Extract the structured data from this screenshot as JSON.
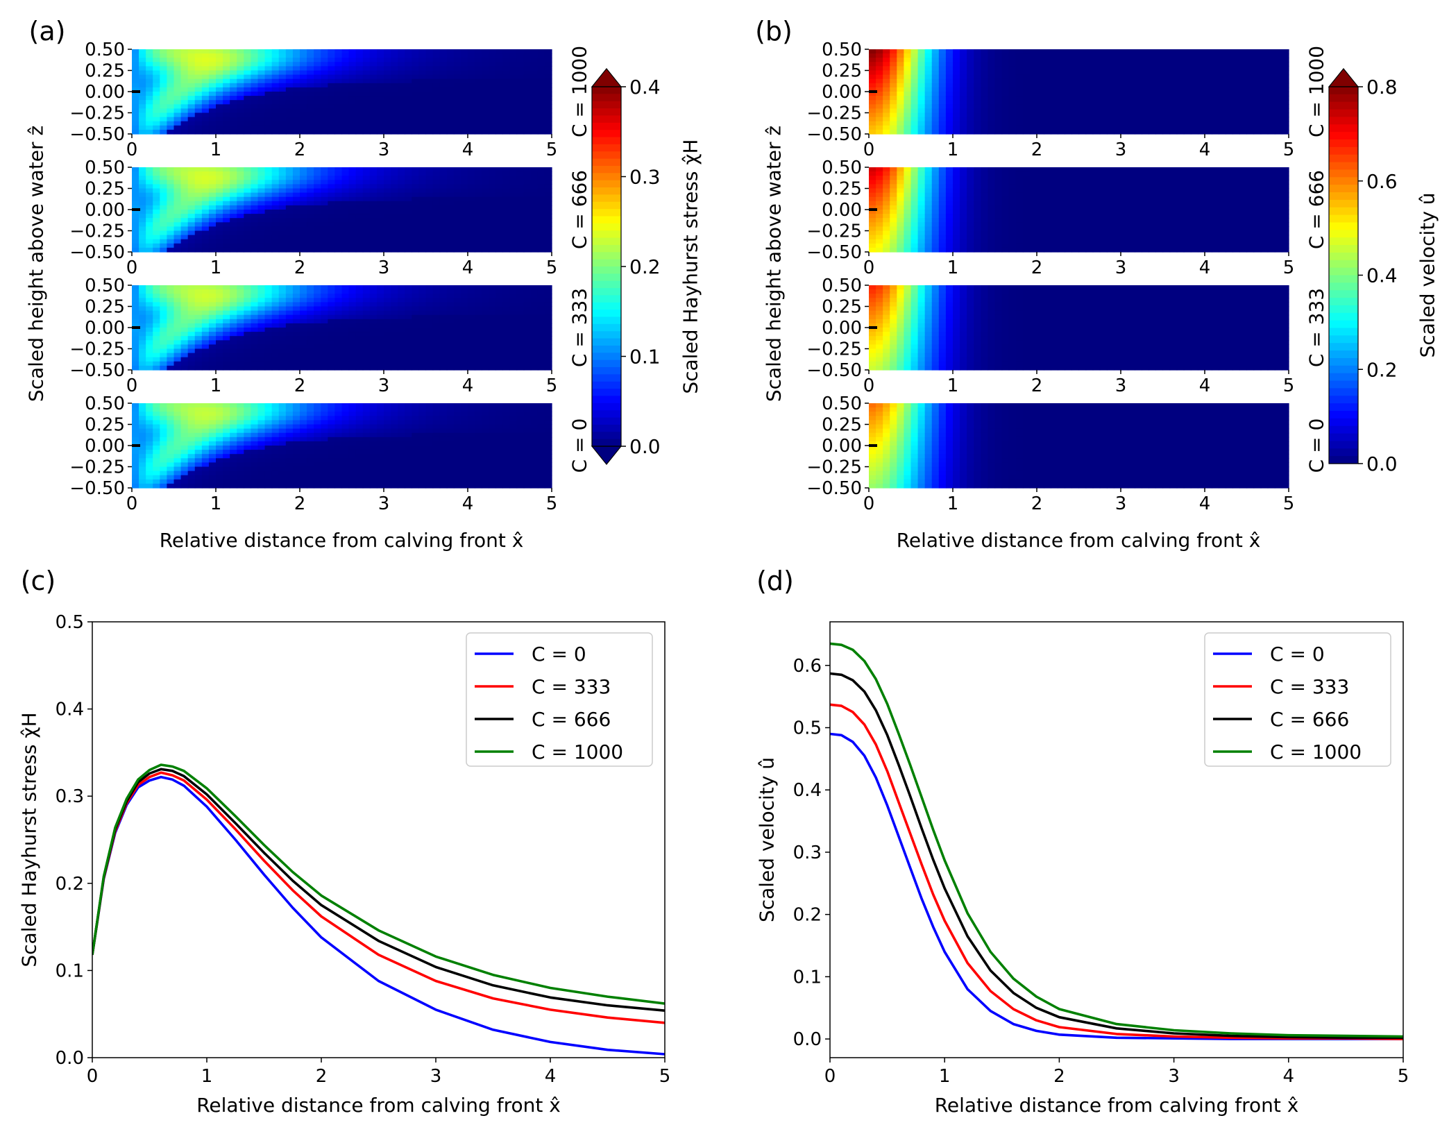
{
  "chart_data": [
    {
      "panel": "(a)",
      "type": "heatmap",
      "quantity": "Scaled Hayhurst stress",
      "xlabel": "Relative distance from calving front x̂",
      "ylabel": "Scaled height above water ẑ",
      "xlim": [
        0,
        5
      ],
      "ylim": [
        -0.5,
        0.5
      ],
      "x_ticks": [
        "0",
        "1",
        "2",
        "3",
        "4",
        "5"
      ],
      "y_ticks": [
        "0.50",
        "0.25",
        "0.00",
        "−0.25",
        "−0.50"
      ],
      "rows": [
        {
          "label": "C = 1000",
          "C": 1000,
          "peak": 0.337
        },
        {
          "label": "C = 666",
          "C": 666,
          "peak": 0.333
        },
        {
          "label": "C = 333",
          "C": 333,
          "peak": 0.328
        },
        {
          "label": "C = 0",
          "C": 0,
          "peak": 0.322
        }
      ],
      "colorbar": {
        "label": "Scaled Hayhurst stress χ̂H",
        "range": [
          0.0,
          0.4
        ],
        "ticks": [
          "0.0",
          "0.1",
          "0.2",
          "0.3",
          "0.4"
        ],
        "extend": "both"
      }
    },
    {
      "panel": "(b)",
      "type": "heatmap",
      "quantity": "Scaled velocity",
      "xlabel": "Relative distance from calving front x̂",
      "ylabel": "Scaled height above water ẑ",
      "xlim": [
        0,
        5
      ],
      "ylim": [
        -0.5,
        0.5
      ],
      "x_ticks": [
        "0",
        "1",
        "2",
        "3",
        "4",
        "5"
      ],
      "y_ticks": [
        "0.50",
        "0.25",
        "0.00",
        "−0.25",
        "−0.50"
      ],
      "rows": [
        {
          "label": "C = 1000",
          "C": 1000,
          "u_front_mid": 0.635
        },
        {
          "label": "C = 666",
          "C": 666,
          "u_front_mid": 0.587
        },
        {
          "label": "C = 333",
          "C": 333,
          "u_front_mid": 0.537
        },
        {
          "label": "C = 0",
          "C": 0,
          "u_front_mid": 0.49
        }
      ],
      "colorbar": {
        "label": "Scaled velocity û",
        "range": [
          0.0,
          0.8
        ],
        "ticks": [
          "0.0",
          "0.2",
          "0.4",
          "0.6",
          "0.8"
        ],
        "extend": "max"
      }
    },
    {
      "panel": "(c)",
      "type": "line",
      "xlabel": "Relative distance from calving front x̂",
      "ylabel": "Scaled Hayhurst stress χ̂H",
      "xlim": [
        0,
        5
      ],
      "ylim": [
        0,
        0.5
      ],
      "x_ticks": [
        "0",
        "1",
        "2",
        "3",
        "4",
        "5"
      ],
      "y_ticks": [
        "0.0",
        "0.1",
        "0.2",
        "0.3",
        "0.4",
        "0.5"
      ],
      "legend_position": "upper right",
      "x": [
        0,
        0.1,
        0.2,
        0.3,
        0.4,
        0.5,
        0.6,
        0.7,
        0.8,
        1.0,
        1.25,
        1.5,
        1.75,
        2.0,
        2.5,
        3.0,
        3.5,
        4.0,
        4.5,
        5.0
      ],
      "series": [
        {
          "name": "C = 0",
          "color": "#0000ff",
          "values": [
            0.118,
            0.205,
            0.258,
            0.29,
            0.31,
            0.318,
            0.322,
            0.319,
            0.312,
            0.288,
            0.25,
            0.21,
            0.172,
            0.138,
            0.088,
            0.055,
            0.032,
            0.018,
            0.009,
            0.004
          ]
        },
        {
          "name": "C = 333",
          "color": "#ff0000",
          "values": [
            0.118,
            0.206,
            0.26,
            0.292,
            0.313,
            0.322,
            0.327,
            0.324,
            0.318,
            0.296,
            0.262,
            0.226,
            0.192,
            0.162,
            0.118,
            0.088,
            0.068,
            0.055,
            0.046,
            0.04
          ]
        },
        {
          "name": "C = 666",
          "color": "#000000",
          "values": [
            0.118,
            0.207,
            0.262,
            0.294,
            0.316,
            0.326,
            0.331,
            0.329,
            0.323,
            0.302,
            0.269,
            0.235,
            0.203,
            0.175,
            0.134,
            0.104,
            0.083,
            0.069,
            0.06,
            0.054
          ]
        },
        {
          "name": "C = 1000",
          "color": "#008000",
          "values": [
            0.118,
            0.208,
            0.264,
            0.297,
            0.319,
            0.33,
            0.336,
            0.334,
            0.329,
            0.309,
            0.277,
            0.244,
            0.213,
            0.186,
            0.146,
            0.116,
            0.095,
            0.08,
            0.07,
            0.062
          ]
        }
      ]
    },
    {
      "panel": "(d)",
      "type": "line",
      "xlabel": "Relative distance from calving front x̂",
      "ylabel": "Scaled velocity û",
      "xlim": [
        0,
        5
      ],
      "ylim": [
        -0.03,
        0.67
      ],
      "x_ticks": [
        "0",
        "1",
        "2",
        "3",
        "4",
        "5"
      ],
      "y_ticks": [
        "0.0",
        "0.1",
        "0.2",
        "0.3",
        "0.4",
        "0.5",
        "0.6"
      ],
      "legend_position": "upper right",
      "x": [
        0,
        0.1,
        0.2,
        0.3,
        0.4,
        0.5,
        0.6,
        0.7,
        0.8,
        0.9,
        1.0,
        1.2,
        1.4,
        1.6,
        1.8,
        2.0,
        2.5,
        3.0,
        3.5,
        4.0,
        4.5,
        5.0
      ],
      "series": [
        {
          "name": "C = 0",
          "color": "#0000ff",
          "values": [
            0.49,
            0.488,
            0.477,
            0.455,
            0.42,
            0.375,
            0.325,
            0.275,
            0.225,
            0.18,
            0.14,
            0.08,
            0.045,
            0.024,
            0.013,
            0.007,
            0.002,
            0.001,
            0.0,
            0.0,
            0.0,
            0.0
          ]
        },
        {
          "name": "C = 333",
          "color": "#ff0000",
          "values": [
            0.537,
            0.535,
            0.525,
            0.505,
            0.473,
            0.43,
            0.38,
            0.33,
            0.28,
            0.232,
            0.19,
            0.122,
            0.077,
            0.048,
            0.03,
            0.019,
            0.008,
            0.004,
            0.002,
            0.001,
            0.001,
            0.0
          ]
        },
        {
          "name": "C = 666",
          "color": "#000000",
          "values": [
            0.587,
            0.585,
            0.576,
            0.558,
            0.528,
            0.488,
            0.44,
            0.39,
            0.338,
            0.288,
            0.242,
            0.165,
            0.11,
            0.074,
            0.05,
            0.035,
            0.017,
            0.009,
            0.005,
            0.003,
            0.002,
            0.002
          ]
        },
        {
          "name": "C = 1000",
          "color": "#008000",
          "values": [
            0.635,
            0.633,
            0.625,
            0.607,
            0.578,
            0.538,
            0.49,
            0.44,
            0.388,
            0.336,
            0.287,
            0.202,
            0.14,
            0.097,
            0.068,
            0.048,
            0.024,
            0.014,
            0.009,
            0.006,
            0.005,
            0.004
          ]
        }
      ]
    }
  ]
}
